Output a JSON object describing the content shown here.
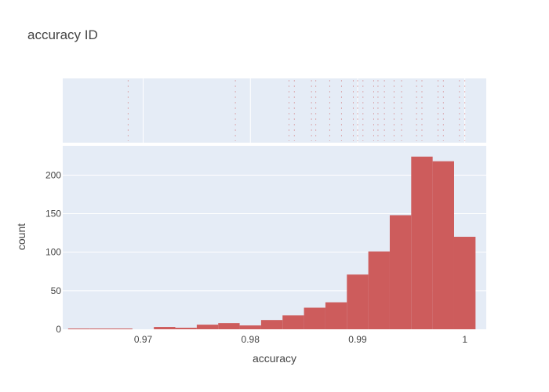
{
  "chart_data": {
    "type": "bar",
    "title": "accuracy ID",
    "xlabel": "accuracy",
    "ylabel": "count",
    "xlim": [
      0.9625,
      1.002
    ],
    "ylim": [
      0,
      238
    ],
    "x_ticks": [
      {
        "value": 0.97,
        "label": "0.97"
      },
      {
        "value": 0.98,
        "label": "0.98"
      },
      {
        "value": 0.99,
        "label": "0.99"
      },
      {
        "value": 1.0,
        "label": "1"
      }
    ],
    "y_ticks": [
      {
        "value": 0,
        "label": "0"
      },
      {
        "value": 50,
        "label": "50"
      },
      {
        "value": 100,
        "label": "100"
      },
      {
        "value": 150,
        "label": "150"
      },
      {
        "value": 200,
        "label": "200"
      }
    ],
    "bin_width": 0.002,
    "bins": [
      {
        "start": 0.963,
        "count": 1
      },
      {
        "start": 0.965,
        "count": 1
      },
      {
        "start": 0.967,
        "count": 1
      },
      {
        "start": 0.969,
        "count": 0
      },
      {
        "start": 0.971,
        "count": 3
      },
      {
        "start": 0.973,
        "count": 2
      },
      {
        "start": 0.975,
        "count": 6
      },
      {
        "start": 0.977,
        "count": 8
      },
      {
        "start": 0.979,
        "count": 5
      },
      {
        "start": 0.981,
        "count": 12
      },
      {
        "start": 0.983,
        "count": 18
      },
      {
        "start": 0.985,
        "count": 28
      },
      {
        "start": 0.987,
        "count": 35
      },
      {
        "start": 0.989,
        "count": 71
      },
      {
        "start": 0.991,
        "count": 101
      },
      {
        "start": 0.993,
        "count": 148
      },
      {
        "start": 0.995,
        "count": 224
      },
      {
        "start": 0.997,
        "count": 218
      },
      {
        "start": 0.999,
        "count": 120
      }
    ],
    "rug_values": [
      0.9686,
      0.9786,
      0.9836,
      0.9841,
      0.9857,
      0.9861,
      0.9874,
      0.9885,
      0.9896,
      0.99,
      0.9905,
      0.9915,
      0.9919,
      0.9925,
      0.9934,
      0.9941,
      0.9955,
      0.996,
      0.9975,
      0.998,
      0.9995,
      1.0
    ],
    "bar_color": "#cd5c5c",
    "rug_color": "#cd5c5c",
    "plot_bg_color": "#e5ecf6",
    "grid": true
  }
}
